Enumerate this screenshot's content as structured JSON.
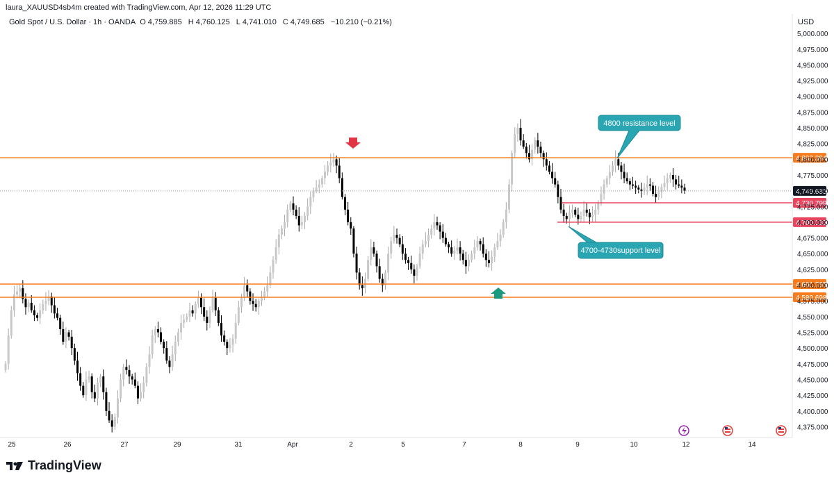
{
  "header": {
    "created_line": "laura_XAUUSD4sb4m created with TradingView.com, Apr 12, 2026 11:29 UTC",
    "symbol": "Gold Spot / U.S. Dollar · 1h · OANDA",
    "open_label": "O",
    "open": "4,759.885",
    "high_label": "H",
    "high": "4,760.125",
    "low_label": "L",
    "low": "4,741.010",
    "close_label": "C",
    "close": "4,749.685",
    "change": "−10.210 (−0.21%)"
  },
  "axis": {
    "currency": "USD",
    "price_ticks": [
      "5,000.000",
      "4,975.000",
      "4,950.000",
      "4,925.000",
      "4,900.000",
      "4,875.000",
      "4,850.000",
      "4,825.000",
      "4,800.000",
      "4,775.000",
      "4,750.000",
      "4,725.000",
      "4,700.000",
      "4,675.000",
      "4,650.000",
      "4,625.000",
      "4,600.000",
      "4,575.000",
      "4,550.000",
      "4,525.000",
      "4,500.000",
      "4,475.000",
      "4,450.000",
      "4,425.000",
      "4,400.000",
      "4,375.000"
    ],
    "date_ticks": [
      "25",
      "26",
      "27",
      "29",
      "31",
      "Apr",
      "2",
      "5",
      "7",
      "8",
      "9",
      "10",
      "12",
      "14"
    ]
  },
  "footer": {
    "brand": "TradingView"
  },
  "colors": {
    "candle_up": "#c8c8c8",
    "candle_down": "#000000",
    "level_line": "#f57c1f",
    "support_line": "#e8455f",
    "callout": "#2aa5b2",
    "arrow_down": "#e03545",
    "arrow_up": "#1a9a80",
    "current_price_bg": "#131722"
  },
  "chart_data": {
    "type": "candlestick",
    "title": "Gold Spot / U.S. Dollar",
    "interval": "1h",
    "ylim": [
      4360,
      5020
    ],
    "current_price": 4749.685,
    "levels": [
      {
        "name": "resistance",
        "value": 4802.394,
        "label": "4,802.394",
        "color": "#f57c1f"
      },
      {
        "name": "support-upper",
        "value": 4730.799,
        "label": "4,730.799",
        "color": "#e8455f"
      },
      {
        "name": "support-lower",
        "value": 4700.135,
        "label": "4,700.135",
        "color": "#e8455f"
      },
      {
        "name": "level-4601",
        "value": 4601.765,
        "label": "4,601.765",
        "color": "#f57c1f"
      },
      {
        "name": "level-4580",
        "value": 4580.698,
        "label": "4,580.698",
        "color": "#f57c1f"
      }
    ],
    "current_price_label": "4,749.685",
    "annotations": [
      {
        "text": "4800 resistance level",
        "points_to": 4802
      },
      {
        "text": "4700-4730support level",
        "points_to": 4700
      }
    ],
    "closes": [
      4475,
      4520,
      4560,
      4585,
      4590,
      4595,
      4578,
      4565,
      4572,
      4560,
      4552,
      4548,
      4560,
      4570,
      4575,
      4582,
      4568,
      4555,
      4548,
      4530,
      4510,
      4525,
      4518,
      4500,
      4480,
      4460,
      4440,
      4425,
      4450,
      4455,
      4430,
      4420,
      4445,
      4455,
      4430,
      4400,
      4385,
      4375,
      4390,
      4420,
      4450,
      4470,
      4465,
      4455,
      4450,
      4440,
      4420,
      4430,
      4445,
      4470,
      4490,
      4520,
      4530,
      4525,
      4510,
      4500,
      4480,
      4470,
      4490,
      4510,
      4525,
      4540,
      4545,
      4550,
      4560,
      4555,
      4570,
      4580,
      4565,
      4550,
      4540,
      4560,
      4580,
      4560,
      4540,
      4520,
      4510,
      4500,
      4505,
      4515,
      4540,
      4565,
      4580,
      4600,
      4590,
      4575,
      4570,
      4565,
      4575,
      4580,
      4590,
      4600,
      4620,
      4640,
      4660,
      4680,
      4690,
      4700,
      4720,
      4730,
      4720,
      4710,
      4695,
      4700,
      4710,
      4725,
      4740,
      4750,
      4755,
      4760,
      4770,
      4780,
      4790,
      4795,
      4800,
      4790,
      4770,
      4740,
      4720,
      4700,
      4690,
      4650,
      4620,
      4600,
      4595,
      4610,
      4640,
      4660,
      4650,
      4630,
      4610,
      4600,
      4620,
      4650,
      4670,
      4680,
      4675,
      4665,
      4650,
      4640,
      4635,
      4625,
      4615,
      4630,
      4650,
      4665,
      4670,
      4680,
      4690,
      4700,
      4695,
      4685,
      4675,
      4665,
      4660,
      4650,
      4655,
      4660,
      4650,
      4640,
      4630,
      4640,
      4650,
      4660,
      4670,
      4665,
      4650,
      4640,
      4635,
      4645,
      4660,
      4670,
      4680,
      4700,
      4720,
      4760,
      4810,
      4840,
      4850,
      4830,
      4820,
      4810,
      4800,
      4815,
      4830,
      4820,
      4810,
      4800,
      4790,
      4780,
      4770,
      4760,
      4740,
      4720,
      4710,
      4705,
      4715,
      4720,
      4712,
      4705,
      4710,
      4720,
      4715,
      4708,
      4712,
      4720,
      4730,
      4745,
      4760,
      4770,
      4780,
      4790,
      4800,
      4790,
      4780,
      4770,
      4765,
      4760,
      4758,
      4755,
      4752,
      4750,
      4755,
      4760,
      4758,
      4745,
      4740,
      4748,
      4756,
      4762,
      4770,
      4775,
      4768,
      4760,
      4758,
      4755,
      4750
    ]
  }
}
